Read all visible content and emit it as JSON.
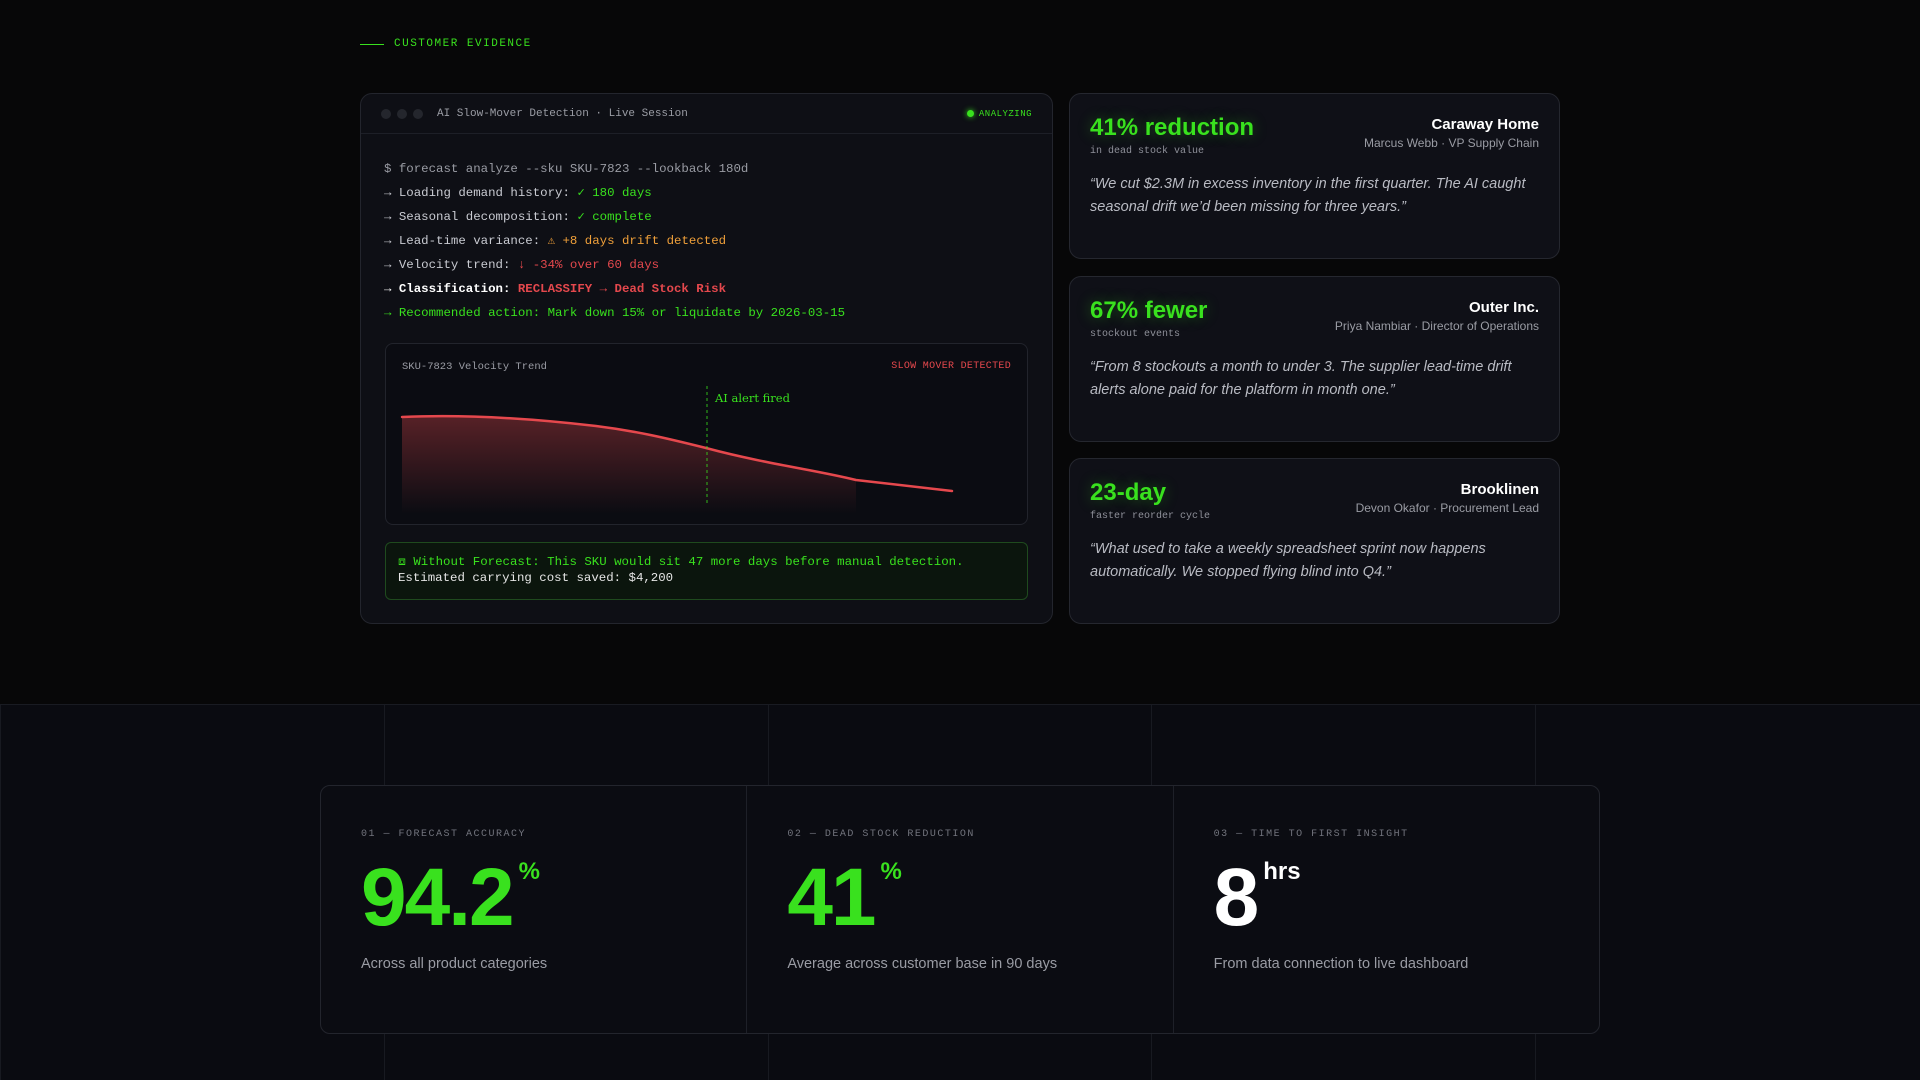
{
  "section": {
    "label": "CUSTOMER EVIDENCE"
  },
  "terminal": {
    "title": "AI Slow-Mover Detection · Live Session",
    "status": "ANALYZING",
    "command": "$ forecast analyze --sku SKU-7823 --lookback 180d",
    "lines": [
      {
        "label": "→ Loading demand history: ",
        "value": "✓ 180 days"
      },
      {
        "label": "→ Seasonal decomposition: ",
        "value": "✓ complete"
      },
      {
        "label": "→ Lead-time variance: ",
        "value": "⚠ +8 days drift detected"
      },
      {
        "label": "→ Velocity trend: ",
        "value": "↓ -34% over 60 days"
      },
      {
        "label": "→ Classification: ",
        "value": "RECLASSIFY → Dead Stock Risk"
      },
      {
        "label": "→ Recommended action: Mark down 15% or liquidate by 2026-03-15",
        "value": ""
      }
    ],
    "chart": {
      "title": "SKU-7823 Velocity Trend",
      "flag": "SLOW MOVER DETECTED",
      "annotation": "AI alert fired"
    },
    "note": {
      "line1": "⧈ Without Forecast: This SKU would sit 47 more days before manual detection.",
      "line2": "Estimated carrying cost saved: $4,200"
    }
  },
  "testimonials": [
    {
      "metric": "41% reduction",
      "metric_sub": "in dead stock value",
      "company": "Caraway Home",
      "person": "Marcus Webb · VP Supply Chain",
      "quote": "“We cut $2.3M in excess inventory in the first quarter. The AI caught seasonal drift we’d been missing for three years.”"
    },
    {
      "metric": "67% fewer",
      "metric_sub": "stockout events",
      "company": "Outer Inc.",
      "person": "Priya Nambiar · Director of Operations",
      "quote": "“From 8 stockouts a month to under 3. The supplier lead-time drift alerts alone paid for the platform in month one.”"
    },
    {
      "metric": "23-day",
      "metric_sub": "faster reorder cycle",
      "company": "Brooklinen",
      "person": "Devon Okafor · Procurement Lead",
      "quote": "“What used to take a weekly spreadsheet sprint now happens automatically. We stopped flying blind into Q4.”"
    }
  ],
  "stats": [
    {
      "label": "01 — FORECAST ACCURACY",
      "value": "94.2",
      "unit": "%",
      "desc": "Across all product categories"
    },
    {
      "label": "02 — DEAD STOCK REDUCTION",
      "value": "41",
      "unit": "%",
      "desc": "Average across customer base in 90 days"
    },
    {
      "label": "03 — TIME TO FIRST INSIGHT",
      "value": "8",
      "unit": "hrs",
      "desc": "From data connection to live dashboard"
    }
  ],
  "colors": {
    "accent": "#39e11e",
    "danger": "#e5484d",
    "warning": "#f0a03a"
  }
}
